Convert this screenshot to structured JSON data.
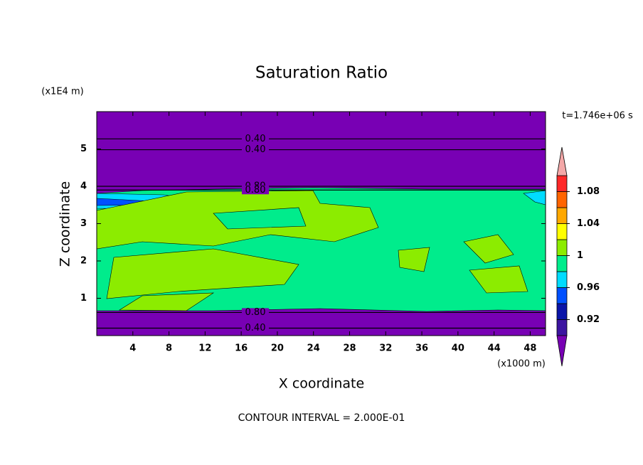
{
  "chart_data": {
    "type": "contour",
    "title": "Saturation Ratio",
    "xlabel": "X coordinate",
    "ylabel": "Z coordinate",
    "x_unit": "(x1000 m)",
    "y_unit": "(x1E4 m)",
    "time_label": "t=1.746e+06 s",
    "footer": "CONTOUR INTERVAL = 2.000E-01",
    "xlim": [
      0,
      49.7
    ],
    "ylim": [
      0,
      6
    ],
    "xticks": [
      4,
      8,
      12,
      16,
      20,
      24,
      28,
      32,
      36,
      40,
      44,
      48
    ],
    "yticks": [
      1,
      2,
      3,
      4,
      5
    ],
    "colorbar": {
      "levels": [
        0.9,
        0.92,
        0.94,
        0.96,
        0.98,
        1,
        1.02,
        1.04,
        1.06,
        1.08,
        1.1
      ],
      "colors": [
        "#3c14a0",
        "#0a14a8",
        "#0050ff",
        "#00dcff",
        "#00ec8c",
        "#8cec00",
        "#ffff00",
        "#ffa800",
        "#ff6400",
        "#ff2828"
      ],
      "under_color": "#7800b4",
      "over_color": "#f4a8a8",
      "ticks": [
        0.92,
        0.96,
        1,
        1.04,
        1.08
      ]
    },
    "contour_lines": [
      {
        "label": "0.40",
        "z": 5.27
      },
      {
        "label": "0.40",
        "z": 4.98
      },
      {
        "label": "0.80",
        "z": 4.0
      },
      {
        "label": "0.80",
        "z": 3.9
      },
      {
        "label": "0.80",
        "z": 0.62
      },
      {
        "label": "0.40",
        "z": 0.2
      }
    ]
  }
}
